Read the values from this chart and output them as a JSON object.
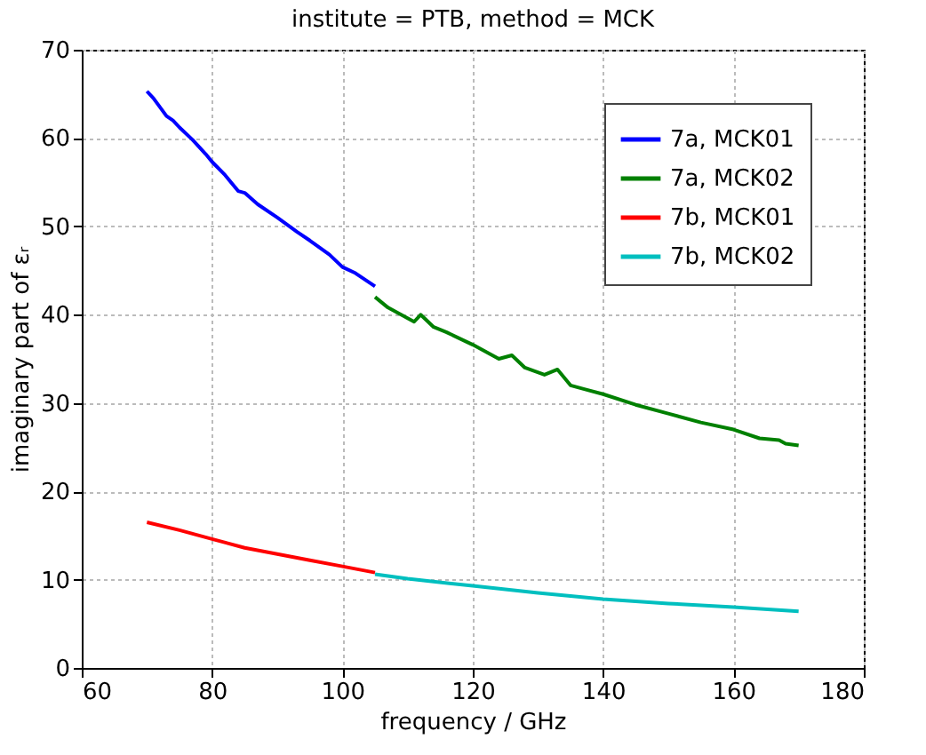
{
  "chart_data": {
    "type": "line",
    "title": "institute = PTB, method = MCK",
    "xlabel": "frequency / GHz",
    "ylabel": "imaginary part of εᵣ",
    "xlim": [
      60,
      180
    ],
    "xticks": [
      60,
      80,
      100,
      120,
      140,
      160,
      180
    ],
    "ylim": [
      0,
      70
    ],
    "yticks": [
      0,
      10,
      20,
      30,
      40,
      50,
      60,
      70
    ],
    "grid": true,
    "legend": "top right",
    "line_style": "solid",
    "marker": "none",
    "series": [
      {
        "name": "7a, MCK01",
        "color": "#0000ff",
        "x": [
          70,
          71,
          72,
          73,
          74,
          75,
          77,
          79,
          80,
          82,
          84,
          85,
          87,
          90,
          93,
          95,
          98,
          100,
          102,
          105
        ],
        "values": [
          65.3,
          64.5,
          63.5,
          62.5,
          62.0,
          61.2,
          59.8,
          58.2,
          57.3,
          55.8,
          54.0,
          53.8,
          52.5,
          51.0,
          49.4,
          48.4,
          46.8,
          45.4,
          44.7,
          43.2
        ]
      },
      {
        "name": "7a, MCK02",
        "color": "#008000",
        "x": [
          105,
          107,
          109,
          111,
          112,
          114,
          116,
          120,
          124,
          126,
          128,
          131,
          133,
          135,
          137,
          140,
          145,
          150,
          155,
          160,
          164,
          167,
          168,
          170
        ],
        "values": [
          42.0,
          40.8,
          40.0,
          39.2,
          40.0,
          38.6,
          38.0,
          36.6,
          35.0,
          35.4,
          34.0,
          33.2,
          33.8,
          32.0,
          31.6,
          31.0,
          29.8,
          28.8,
          27.8,
          27.0,
          26.0,
          25.8,
          25.4,
          25.2
        ]
      },
      {
        "name": "7b, MCK01",
        "color": "#ff0000",
        "x": [
          70,
          75,
          80,
          85,
          90,
          95,
          100,
          105
        ],
        "values": [
          16.5,
          15.6,
          14.6,
          13.6,
          12.9,
          12.2,
          11.5,
          10.8
        ]
      },
      {
        "name": "7b, MCK02",
        "color": "#00bfbf",
        "x": [
          105,
          110,
          120,
          130,
          140,
          150,
          160,
          170
        ],
        "values": [
          10.6,
          10.1,
          9.3,
          8.5,
          7.8,
          7.3,
          6.9,
          6.4
        ]
      }
    ]
  }
}
